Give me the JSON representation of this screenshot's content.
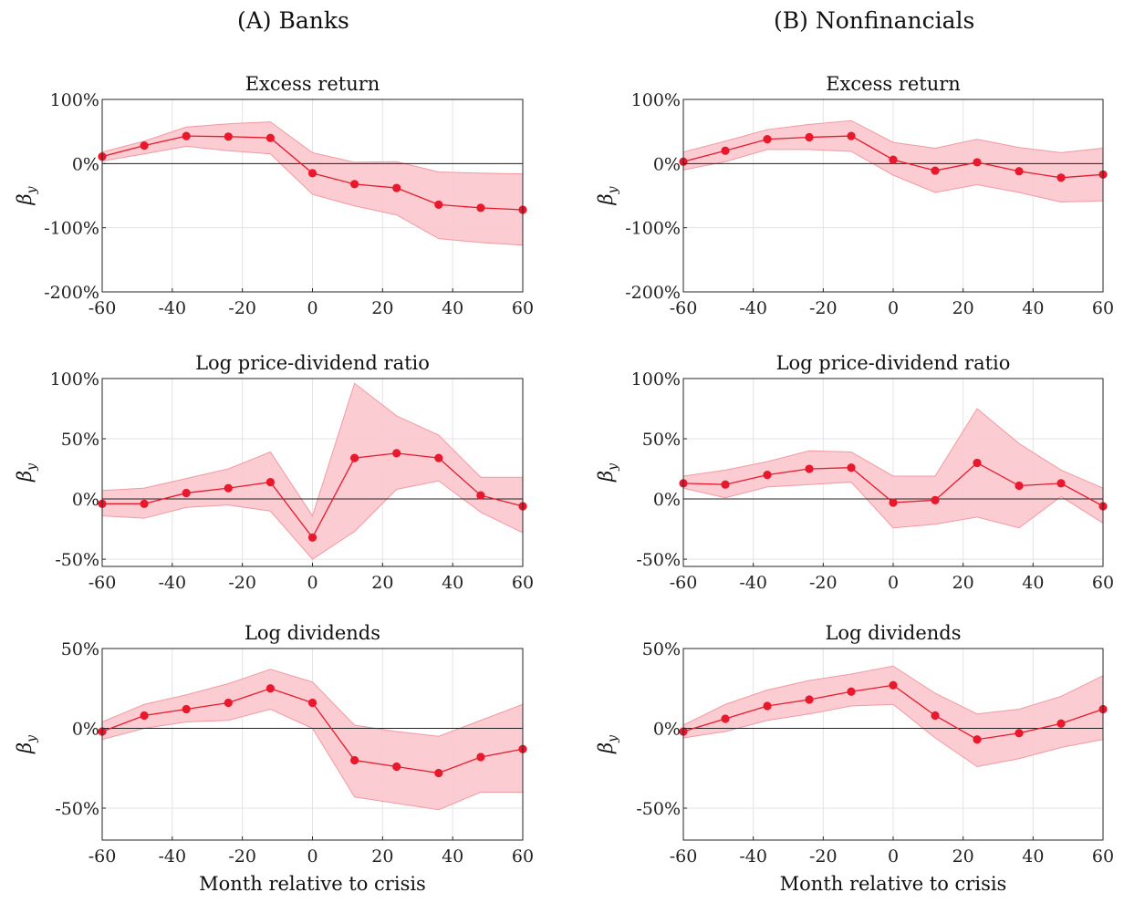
{
  "column_titles": [
    "(A) Banks",
    "(B) Nonfinancials"
  ],
  "colors": {
    "series": "#e8192c",
    "band": "#fbc7cc",
    "band_edge": "#f29aa3",
    "zero_line": "#222222",
    "grid": "#e3e3e3"
  },
  "chart_data": [
    {
      "panel": "A",
      "type": "line",
      "title": "Excess return",
      "xlabel": "",
      "ylabel": "βy",
      "x": [
        -60,
        -48,
        -36,
        -24,
        -12,
        0,
        12,
        24,
        36,
        48,
        60
      ],
      "xlim": [
        -60,
        60
      ],
      "xticks": [
        "-60",
        "-40",
        "-20",
        "0",
        "20",
        "40",
        "60"
      ],
      "ylim": [
        -200,
        100
      ],
      "yticks": [
        100,
        0,
        -100,
        -200
      ],
      "ytick_labels": [
        "100%",
        "0%",
        "-100%",
        "-200%"
      ],
      "grid": true,
      "zero_line": true,
      "series": [
        {
          "values": [
            11,
            28,
            43,
            42,
            40,
            -15,
            -32,
            -38,
            -64,
            -69,
            -72
          ]
        }
      ],
      "band_upper": [
        18,
        35,
        57,
        62,
        65,
        17,
        2,
        3,
        -13,
        -15,
        -16
      ],
      "band_lower": [
        4,
        15,
        27,
        20,
        15,
        -48,
        -66,
        -80,
        -117,
        -123,
        -127
      ]
    },
    {
      "panel": "A",
      "type": "line",
      "title": "Log price-dividend ratio",
      "xlabel": "",
      "ylabel": "βy",
      "x": [
        -60,
        -48,
        -36,
        -24,
        -12,
        0,
        12,
        24,
        36,
        48,
        60
      ],
      "xlim": [
        -60,
        60
      ],
      "xticks": [
        "-60",
        "-40",
        "-20",
        "0",
        "20",
        "40",
        "60"
      ],
      "ylim": [
        -56,
        100
      ],
      "yticks": [
        100,
        50,
        0,
        -50
      ],
      "ytick_labels": [
        "100%",
        "50%",
        "0%",
        "-50%"
      ],
      "grid": true,
      "zero_line": true,
      "series": [
        {
          "values": [
            -4,
            -4,
            5,
            9,
            14,
            -32,
            34,
            38,
            34,
            3,
            -6
          ]
        }
      ],
      "band_upper": [
        7,
        9,
        17,
        25,
        39,
        -14,
        96,
        69,
        53,
        18,
        18
      ],
      "band_lower": [
        -14,
        -16,
        -7,
        -5,
        -10,
        -50,
        -27,
        8,
        15,
        -11,
        -28
      ]
    },
    {
      "panel": "A",
      "type": "line",
      "title": "Log dividends",
      "xlabel": "Month relative to crisis",
      "ylabel": "βy",
      "x": [
        -60,
        -48,
        -36,
        -24,
        -12,
        0,
        12,
        24,
        36,
        48,
        60
      ],
      "xlim": [
        -60,
        60
      ],
      "xticks": [
        "-60",
        "-40",
        "-20",
        "0",
        "20",
        "40",
        "60"
      ],
      "ylim": [
        -70,
        50
      ],
      "yticks": [
        50,
        0,
        -50
      ],
      "ytick_labels": [
        "50%",
        "0%",
        "-50%"
      ],
      "grid": true,
      "zero_line": true,
      "series": [
        {
          "values": [
            -2,
            8,
            12,
            16,
            25,
            16,
            -20,
            -24,
            -28,
            -18,
            -13
          ]
        }
      ],
      "band_upper": [
        4,
        15,
        21,
        28,
        37,
        29,
        2,
        -2,
        -5,
        5,
        15
      ],
      "band_lower": [
        -7,
        0,
        4,
        5,
        12,
        0,
        -43,
        -47,
        -51,
        -40,
        -40
      ]
    },
    {
      "panel": "B",
      "type": "line",
      "title": "Excess return",
      "xlabel": "",
      "ylabel": "βy",
      "x": [
        -60,
        -48,
        -36,
        -24,
        -12,
        0,
        12,
        24,
        36,
        48,
        60
      ],
      "xlim": [
        -60,
        60
      ],
      "xticks": [
        "-60",
        "-40",
        "-20",
        "0",
        "20",
        "40",
        "60"
      ],
      "ylim": [
        -200,
        100
      ],
      "yticks": [
        100,
        0,
        -100,
        -200
      ],
      "ytick_labels": [
        "100%",
        "0%",
        "-100%",
        "-200%"
      ],
      "grid": true,
      "zero_line": true,
      "series": [
        {
          "values": [
            3,
            20,
            38,
            41,
            43,
            6,
            -11,
            2,
            -12,
            -22,
            -17
          ]
        }
      ],
      "band_upper": [
        18,
        35,
        53,
        61,
        67,
        33,
        24,
        38,
        25,
        17,
        24
      ],
      "band_lower": [
        -10,
        3,
        22,
        22,
        19,
        -18,
        -45,
        -33,
        -45,
        -60,
        -58
      ]
    },
    {
      "panel": "B",
      "type": "line",
      "title": "Log price-dividend ratio",
      "xlabel": "",
      "ylabel": "βy",
      "x": [
        -60,
        -48,
        -36,
        -24,
        -12,
        0,
        12,
        24,
        36,
        48,
        60
      ],
      "xlim": [
        -60,
        60
      ],
      "xticks": [
        "-60",
        "-40",
        "-20",
        "0",
        "20",
        "40",
        "60"
      ],
      "ylim": [
        -56,
        100
      ],
      "yticks": [
        100,
        50,
        0,
        -50
      ],
      "ytick_labels": [
        "100%",
        "50%",
        "0%",
        "-50%"
      ],
      "grid": true,
      "zero_line": true,
      "series": [
        {
          "values": [
            13,
            12,
            20,
            25,
            26,
            -3,
            -1,
            30,
            11,
            13,
            -6
          ]
        }
      ],
      "band_upper": [
        19,
        24,
        31,
        40,
        39,
        19,
        19,
        75,
        46,
        24,
        9
      ],
      "band_lower": [
        9,
        1,
        10,
        12,
        14,
        -24,
        -21,
        -15,
        -24,
        2,
        -20
      ]
    },
    {
      "panel": "B",
      "type": "line",
      "title": "Log dividends",
      "xlabel": "Month relative to crisis",
      "ylabel": "βy",
      "x": [
        -60,
        -48,
        -36,
        -24,
        -12,
        0,
        12,
        24,
        36,
        48,
        60
      ],
      "xlim": [
        -60,
        60
      ],
      "xticks": [
        "-60",
        "-40",
        "-20",
        "0",
        "20",
        "40",
        "60"
      ],
      "ylim": [
        -70,
        50
      ],
      "yticks": [
        50,
        0,
        -50
      ],
      "ytick_labels": [
        "50%",
        "0%",
        "-50%"
      ],
      "grid": true,
      "zero_line": true,
      "series": [
        {
          "values": [
            -2,
            6,
            14,
            18,
            23,
            27,
            8,
            -7,
            -3,
            3,
            12
          ]
        }
      ],
      "band_upper": [
        2,
        15,
        24,
        30,
        34,
        39,
        22,
        9,
        12,
        20,
        33
      ],
      "band_lower": [
        -6,
        -2,
        5,
        9,
        14,
        15,
        -6,
        -24,
        -19,
        -12,
        -7
      ]
    }
  ]
}
